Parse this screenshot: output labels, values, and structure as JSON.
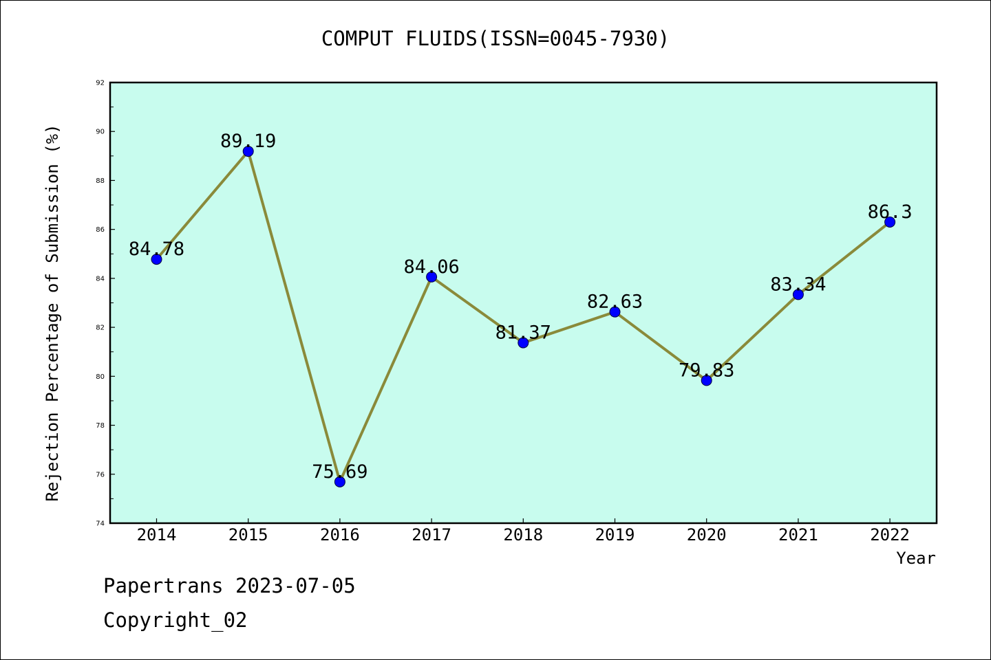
{
  "chart_data": {
    "type": "line",
    "title": "COMPUT FLUIDS(ISSN=0045-7930)",
    "xlabel": "Year",
    "ylabel": "Rejection Percentage of Submission (%)",
    "categories": [
      "2014",
      "2015",
      "2016",
      "2017",
      "2018",
      "2019",
      "2020",
      "2021",
      "2022"
    ],
    "values": [
      84.78,
      89.19,
      75.69,
      84.06,
      81.37,
      82.63,
      79.83,
      83.34,
      86.3
    ],
    "data_labels": [
      "84.78",
      "89.19",
      "75.69",
      "84.06",
      "81.37",
      "82.63",
      "79.83",
      "83.34",
      "86.3"
    ],
    "ylim": [
      74,
      92
    ],
    "yticks": [
      "74",
      "76",
      "78",
      "80",
      "82",
      "84",
      "86",
      "88",
      "90",
      "92"
    ],
    "grid": false,
    "legend": "none",
    "colors": {
      "plot_background": "#c8fcee",
      "line": "#8a8a3a",
      "marker": "#0000ff"
    }
  },
  "footer": {
    "line1": "Papertrans 2023-07-05",
    "line2": "Copyright_02"
  }
}
